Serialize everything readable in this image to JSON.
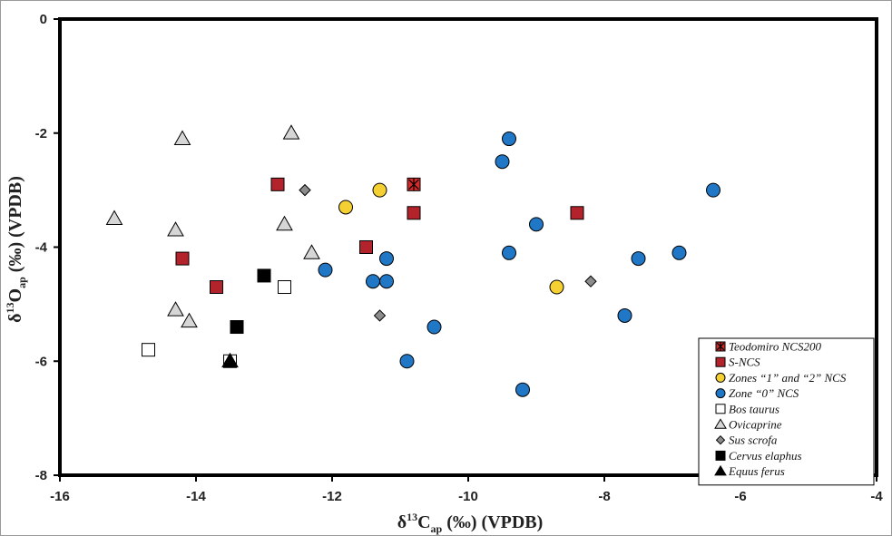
{
  "chart_data": {
    "type": "scatter",
    "xlabel": {
      "main": "δ",
      "sup": "13",
      "el": "C",
      "sub": "ap",
      "rest": " (‰) (VPDB)"
    },
    "ylabel": {
      "main": "δ",
      "sup": "13",
      "el": "O",
      "sub": "ap",
      "rest": " (‰) (VPDB)"
    },
    "xlim": [
      -16,
      -4
    ],
    "ylim": [
      -8,
      0
    ],
    "x_ticks": [
      -16,
      -14,
      -12,
      -10,
      -8,
      -6,
      -4
    ],
    "y_ticks": [
      0,
      -2,
      -4,
      -6,
      -8
    ],
    "grid": false,
    "legend_position": "bottom-right",
    "series": [
      {
        "name": "Teodomiro NCS200",
        "marker": "square-star",
        "fill": "#d42a2a",
        "points": [
          [
            -10.8,
            -2.9
          ]
        ]
      },
      {
        "name": "S-NCS",
        "marker": "square",
        "fill": "#b3232b",
        "points": [
          [
            -12.8,
            -2.9
          ],
          [
            -10.8,
            -3.4
          ],
          [
            -8.4,
            -3.4
          ],
          [
            -11.5,
            -4.0
          ],
          [
            -14.2,
            -4.2
          ],
          [
            -13.7,
            -4.7
          ]
        ]
      },
      {
        "name": "Zones “1” and “2” NCS",
        "marker": "circle",
        "fill": "#f5d033",
        "points": [
          [
            -11.8,
            -3.3
          ],
          [
            -11.3,
            -3.0
          ],
          [
            -8.7,
            -4.7
          ]
        ]
      },
      {
        "name": "Zone “0” NCS",
        "marker": "circle",
        "fill": "#1f77c6",
        "points": [
          [
            -9.4,
            -2.1
          ],
          [
            -9.5,
            -2.5
          ],
          [
            -6.4,
            -3.0
          ],
          [
            -9.0,
            -3.6
          ],
          [
            -9.4,
            -4.1
          ],
          [
            -11.2,
            -4.2
          ],
          [
            -12.1,
            -4.4
          ],
          [
            -11.4,
            -4.6
          ],
          [
            -11.2,
            -4.6
          ],
          [
            -7.5,
            -4.2
          ],
          [
            -6.9,
            -4.1
          ],
          [
            -7.7,
            -5.2
          ],
          [
            -10.5,
            -5.4
          ],
          [
            -10.9,
            -6.0
          ],
          [
            -9.2,
            -6.5
          ]
        ]
      },
      {
        "name": "Bos taurus",
        "marker": "square",
        "fill": "#ffffff",
        "points": [
          [
            -14.7,
            -5.8
          ],
          [
            -12.7,
            -4.7
          ],
          [
            -13.5,
            -6.0
          ]
        ]
      },
      {
        "name": "Ovicaprine",
        "marker": "triangle",
        "fill": "#d6d6d6",
        "points": [
          [
            -15.2,
            -3.5
          ],
          [
            -14.2,
            -2.1
          ],
          [
            -14.3,
            -3.7
          ],
          [
            -12.6,
            -2.0
          ],
          [
            -12.7,
            -3.6
          ],
          [
            -12.3,
            -4.1
          ],
          [
            -14.3,
            -5.1
          ],
          [
            -14.1,
            -5.3
          ]
        ]
      },
      {
        "name": "Sus scrofa",
        "marker": "diamond",
        "fill": "#8c8c8c",
        "points": [
          [
            -12.4,
            -3.0
          ],
          [
            -8.2,
            -4.6
          ],
          [
            -11.3,
            -5.2
          ]
        ]
      },
      {
        "name": "Cervus elaphus",
        "marker": "square",
        "fill": "#000000",
        "points": [
          [
            -13.0,
            -4.5
          ],
          [
            -13.4,
            -5.4
          ]
        ]
      },
      {
        "name": "Equus ferus",
        "marker": "triangle",
        "fill": "#000000",
        "points": [
          [
            -13.5,
            -6.0
          ]
        ]
      }
    ]
  }
}
